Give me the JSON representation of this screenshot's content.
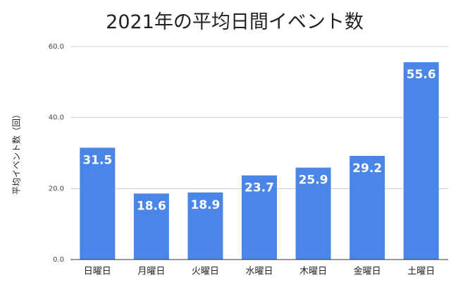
{
  "chart_data": {
    "type": "bar",
    "title": "2021年の平均日間イベント数",
    "ylabel": "平均イベント数（回）",
    "xlabel": "",
    "categories": [
      "日曜日",
      "月曜日",
      "火曜日",
      "水曜日",
      "木曜日",
      "金曜日",
      "土曜日"
    ],
    "values": [
      31.5,
      18.6,
      18.9,
      23.7,
      25.9,
      29.2,
      55.6
    ],
    "data_labels": [
      "31.5",
      "18.6",
      "18.9",
      "23.7",
      "25.9",
      "29.2",
      "55.6"
    ],
    "ylim": [
      0,
      60
    ],
    "yticks": [
      0,
      20,
      40,
      60
    ],
    "ytick_labels": [
      "0.0",
      "20.0",
      "40.0",
      "60.0"
    ],
    "grid": true,
    "legend": "none",
    "bar_color": "#4a86e8"
  }
}
